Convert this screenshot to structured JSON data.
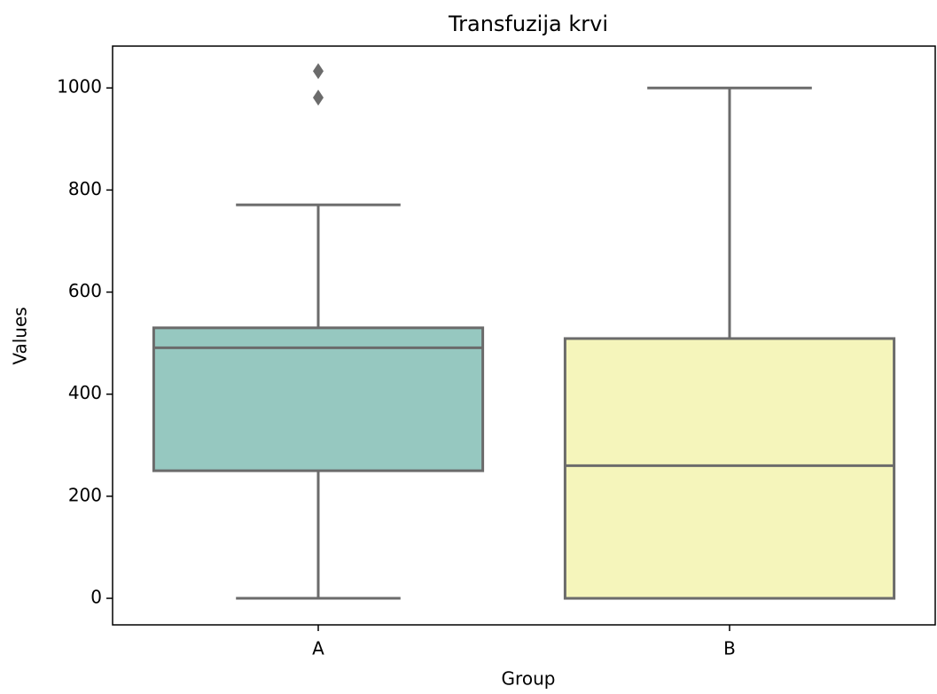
{
  "chart_data": {
    "type": "box",
    "title": "Transfuzija krvi",
    "x_label": "Group",
    "y_label": "Values",
    "categories": [
      "A",
      "B"
    ],
    "colors": [
      "#96c8c0",
      "#f5f5bb"
    ],
    "boxes": [
      {
        "whislo": 0,
        "q1": 250,
        "med": 491,
        "q3": 530,
        "whishi": 771,
        "fliers": [
          981,
          1033
        ]
      },
      {
        "whislo": 0,
        "q1": 0,
        "med": 260,
        "q3": 509,
        "whishi": 1000,
        "fliers": []
      }
    ],
    "ylim": [
      -52,
      1082
    ],
    "yticks": [
      0,
      200,
      400,
      600,
      800,
      1000
    ]
  }
}
